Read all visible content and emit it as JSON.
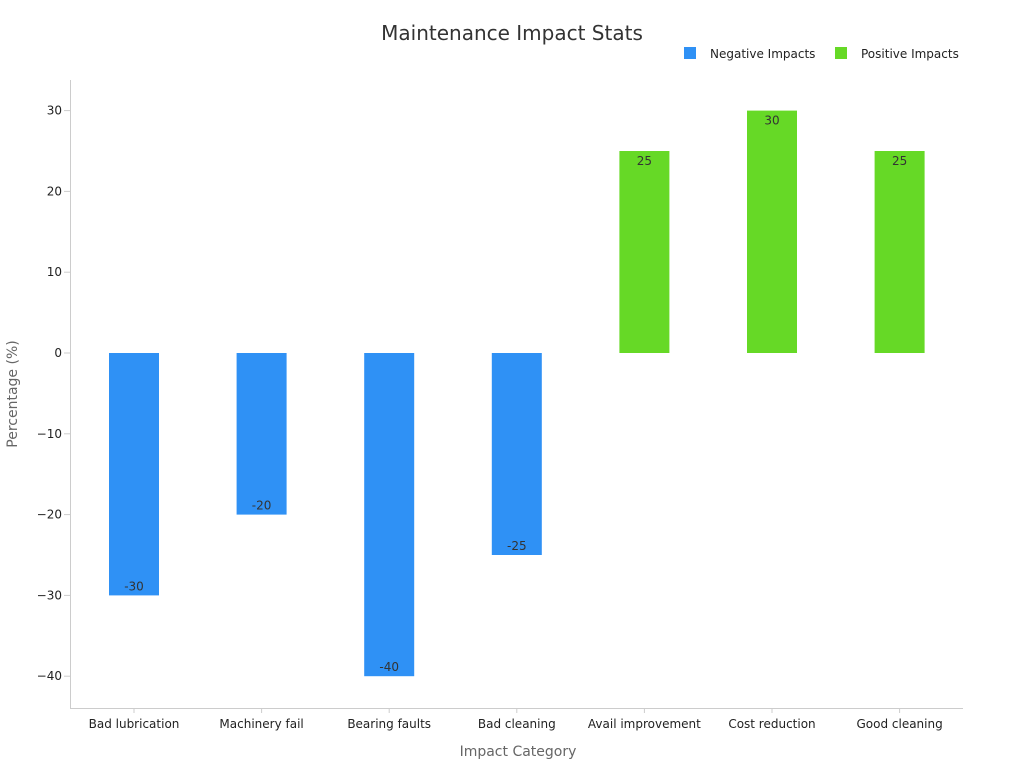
{
  "chart_data": {
    "type": "bar",
    "title": "Maintenance Impact Stats",
    "xlabel": "Impact Category",
    "ylabel": "Percentage (%)",
    "ylim": [
      -44,
      34
    ],
    "yticks": [
      -40,
      -30,
      -20,
      -10,
      0,
      10,
      20,
      30
    ],
    "grid": false,
    "legend_position": "top-right",
    "categories": [
      "Bad lubrication",
      "Machinery fail",
      "Bearing faults",
      "Bad cleaning",
      "Avail improvement",
      "Cost reduction",
      "Good cleaning"
    ],
    "series": [
      {
        "name": "Negative Impacts",
        "color": "#2f91f5",
        "values": [
          -30,
          -20,
          -40,
          -25,
          null,
          null,
          null
        ]
      },
      {
        "name": "Positive Impacts",
        "color": "#66d926",
        "values": [
          null,
          null,
          null,
          null,
          25,
          30,
          25
        ]
      }
    ]
  }
}
